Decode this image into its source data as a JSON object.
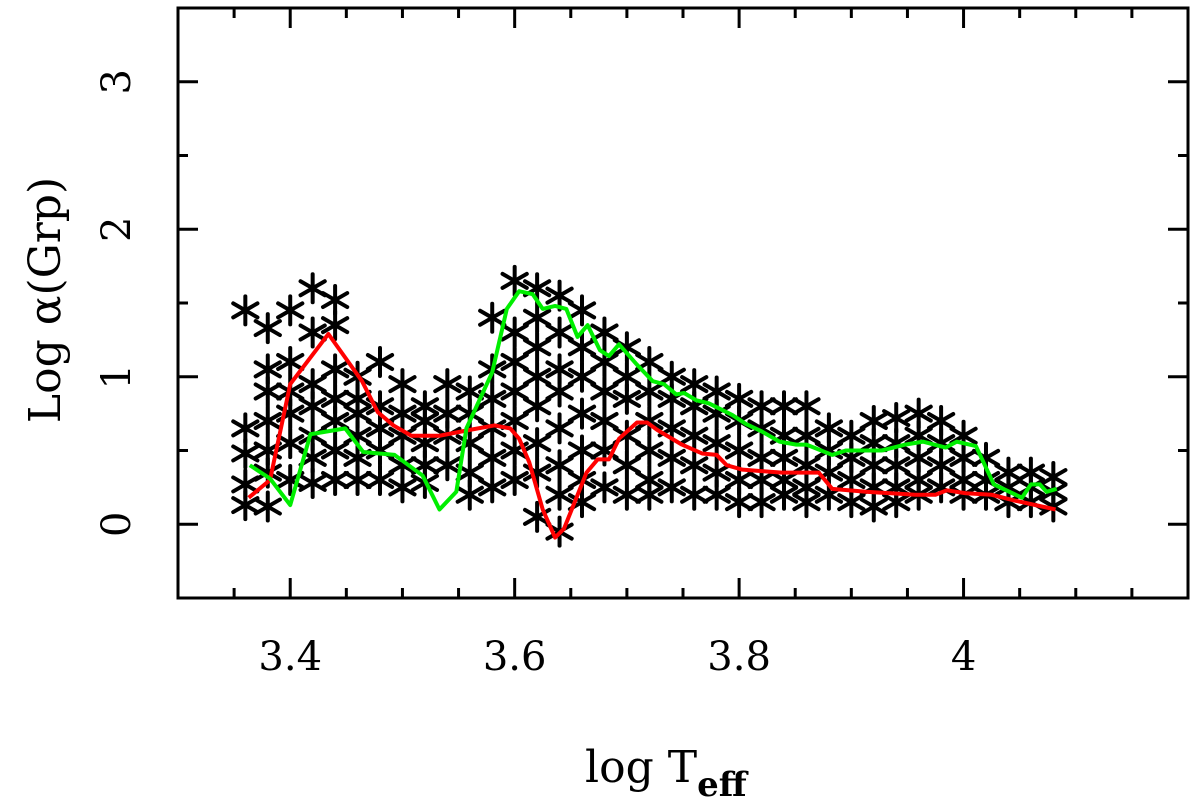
{
  "chart_data": {
    "type": "scatter",
    "title": "",
    "xlabel": "log T",
    "xlabel_subscript": "eff",
    "ylabel": "Log α(Grp)",
    "xlim": [
      3.3,
      4.2
    ],
    "ylim": [
      -0.5,
      3.5
    ],
    "x_ticks": [
      3.4,
      3.6,
      3.8,
      4
    ],
    "x_tick_labels": [
      "3.4",
      "3.6",
      "3.8",
      "4"
    ],
    "y_ticks": [
      0,
      1,
      2,
      3
    ],
    "y_tick_labels": [
      "0",
      "1",
      "2",
      "3"
    ],
    "grid": false,
    "legend": "none",
    "marker": "asterisk",
    "colors": {
      "points": "#000000",
      "red_line": "#ff0000",
      "green_line": "#00ee00"
    },
    "points_by_x": [
      {
        "x": 3.36,
        "y": [
          1.45,
          0.65,
          0.48,
          0.27,
          0.13
        ]
      },
      {
        "x": 3.38,
        "y": [
          1.33,
          1.05,
          0.9,
          0.7,
          0.5,
          0.35,
          0.12
        ]
      },
      {
        "x": 3.4,
        "y": [
          1.45,
          1.1,
          0.9,
          0.75,
          0.55,
          0.3
        ]
      },
      {
        "x": 3.42,
        "y": [
          1.6,
          1.3,
          0.95,
          0.8,
          0.6,
          0.45,
          0.28
        ]
      },
      {
        "x": 3.44,
        "y": [
          1.52,
          1.35,
          1.05,
          0.85,
          0.7,
          0.5,
          0.3
        ]
      },
      {
        "x": 3.46,
        "y": [
          1.0,
          0.85,
          0.75,
          0.6,
          0.45,
          0.3
        ]
      },
      {
        "x": 3.48,
        "y": [
          1.1,
          0.8,
          0.65,
          0.5,
          0.3
        ]
      },
      {
        "x": 3.5,
        "y": [
          0.95,
          0.75,
          0.6,
          0.4,
          0.25
        ]
      },
      {
        "x": 3.52,
        "y": [
          0.8,
          0.7,
          0.55,
          0.4,
          0.28
        ]
      },
      {
        "x": 3.54,
        "y": [
          0.95,
          0.75,
          0.6,
          0.4
        ]
      },
      {
        "x": 3.56,
        "y": [
          0.9,
          0.75,
          0.55,
          0.35,
          0.2
        ]
      },
      {
        "x": 3.58,
        "y": [
          1.4,
          1.05,
          0.85,
          0.65,
          0.45,
          0.25
        ]
      },
      {
        "x": 3.6,
        "y": [
          1.65,
          1.3,
          1.1,
          0.9,
          0.7,
          0.5,
          0.3
        ]
      },
      {
        "x": 3.62,
        "y": [
          1.6,
          1.4,
          1.2,
          1.0,
          0.8,
          0.55,
          0.35,
          0.05
        ]
      },
      {
        "x": 3.64,
        "y": [
          1.55,
          1.3,
          1.05,
          0.9,
          0.65,
          0.4,
          0.2,
          -0.05
        ]
      },
      {
        "x": 3.66,
        "y": [
          1.45,
          1.2,
          1.0,
          0.75,
          0.5,
          0.3,
          0.15
        ]
      },
      {
        "x": 3.68,
        "y": [
          1.3,
          1.1,
          0.9,
          0.7,
          0.5,
          0.25
        ]
      },
      {
        "x": 3.7,
        "y": [
          1.2,
          1.0,
          0.85,
          0.6,
          0.4,
          0.2
        ]
      },
      {
        "x": 3.72,
        "y": [
          1.1,
          0.9,
          0.7,
          0.5,
          0.3,
          0.2
        ]
      },
      {
        "x": 3.74,
        "y": [
          1.0,
          0.85,
          0.65,
          0.45,
          0.25
        ]
      },
      {
        "x": 3.76,
        "y": [
          0.95,
          0.8,
          0.6,
          0.4,
          0.2
        ]
      },
      {
        "x": 3.78,
        "y": [
          0.9,
          0.75,
          0.55,
          0.35,
          0.2
        ]
      },
      {
        "x": 3.8,
        "y": [
          0.85,
          0.7,
          0.5,
          0.3,
          0.15
        ]
      },
      {
        "x": 3.82,
        "y": [
          0.8,
          0.65,
          0.45,
          0.3,
          0.15
        ]
      },
      {
        "x": 3.84,
        "y": [
          0.8,
          0.6,
          0.45,
          0.3,
          0.2
        ]
      },
      {
        "x": 3.86,
        "y": [
          0.8,
          0.6,
          0.4,
          0.25,
          0.15
        ]
      },
      {
        "x": 3.88,
        "y": [
          0.65,
          0.5,
          0.35,
          0.2
        ]
      },
      {
        "x": 3.9,
        "y": [
          0.6,
          0.45,
          0.3,
          0.15
        ]
      },
      {
        "x": 3.92,
        "y": [
          0.7,
          0.55,
          0.4,
          0.25,
          0.12
        ]
      },
      {
        "x": 3.94,
        "y": [
          0.72,
          0.55,
          0.4,
          0.25,
          0.15
        ]
      },
      {
        "x": 3.96,
        "y": [
          0.75,
          0.6,
          0.45,
          0.3,
          0.2
        ]
      },
      {
        "x": 3.98,
        "y": [
          0.7,
          0.55,
          0.4,
          0.25
        ]
      },
      {
        "x": 4.0,
        "y": [
          0.6,
          0.45,
          0.3,
          0.2
        ]
      },
      {
        "x": 4.02,
        "y": [
          0.45,
          0.3,
          0.2
        ]
      },
      {
        "x": 4.04,
        "y": [
          0.35,
          0.25,
          0.15
        ]
      },
      {
        "x": 4.06,
        "y": [
          0.35,
          0.25,
          0.15
        ]
      },
      {
        "x": 4.08,
        "y": [
          0.32,
          0.22,
          0.12
        ]
      }
    ],
    "series": [
      {
        "color": "#ff0000",
        "x": [
          3.363,
          3.382,
          3.4,
          3.434,
          3.464,
          3.478,
          3.492,
          3.508,
          3.533,
          3.56,
          3.582,
          3.596,
          3.604,
          3.613,
          3.625,
          3.636,
          3.644,
          3.664,
          3.674,
          3.684,
          3.693,
          3.709,
          3.718,
          3.727,
          3.749,
          3.767,
          3.78,
          3.789,
          3.803,
          3.838,
          3.871,
          3.883,
          3.913,
          3.957,
          3.975,
          3.985,
          4.002,
          4.025,
          4.046,
          4.082
        ],
        "y": [
          0.18,
          0.3,
          0.95,
          1.29,
          0.97,
          0.76,
          0.67,
          0.6,
          0.6,
          0.64,
          0.67,
          0.65,
          0.58,
          0.42,
          0.1,
          -0.09,
          -0.03,
          0.35,
          0.44,
          0.44,
          0.58,
          0.69,
          0.69,
          0.64,
          0.54,
          0.48,
          0.47,
          0.4,
          0.37,
          0.35,
          0.35,
          0.24,
          0.22,
          0.2,
          0.2,
          0.23,
          0.21,
          0.2,
          0.16,
          0.1
        ]
      },
      {
        "color": "#00ee00",
        "x": [
          3.364,
          3.382,
          3.4,
          3.418,
          3.449,
          3.465,
          3.493,
          3.518,
          3.533,
          3.548,
          3.557,
          3.58,
          3.593,
          3.604,
          3.616,
          3.625,
          3.636,
          3.646,
          3.656,
          3.665,
          3.676,
          3.684,
          3.693,
          3.708,
          3.723,
          3.733,
          3.744,
          3.751,
          3.762,
          3.773,
          3.794,
          3.806,
          3.82,
          3.836,
          3.851,
          3.86,
          3.883,
          3.895,
          3.927,
          3.948,
          3.964,
          3.984,
          3.994,
          4.011,
          4.027,
          4.052,
          4.06,
          4.068,
          4.074,
          4.083
        ],
        "y": [
          0.4,
          0.31,
          0.13,
          0.61,
          0.65,
          0.49,
          0.47,
          0.33,
          0.1,
          0.22,
          0.65,
          1.03,
          1.46,
          1.58,
          1.56,
          1.46,
          1.48,
          1.46,
          1.27,
          1.35,
          1.18,
          1.14,
          1.22,
          1.09,
          0.97,
          0.95,
          0.88,
          0.89,
          0.84,
          0.82,
          0.74,
          0.68,
          0.63,
          0.56,
          0.54,
          0.54,
          0.47,
          0.5,
          0.5,
          0.54,
          0.56,
          0.52,
          0.56,
          0.53,
          0.27,
          0.18,
          0.27,
          0.27,
          0.22,
          0.24
        ]
      }
    ]
  }
}
